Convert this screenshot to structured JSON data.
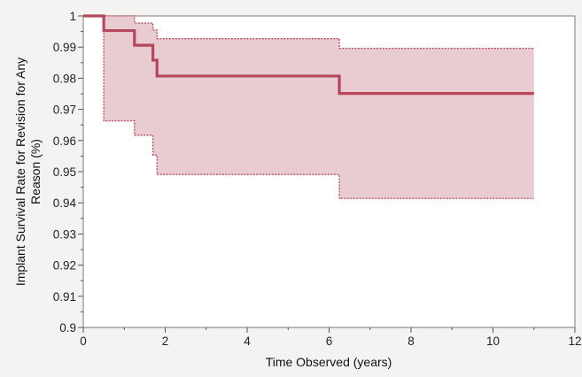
{
  "chart_data": {
    "type": "line",
    "title": "",
    "xlabel": "Time Observed (years)",
    "ylabel_lines": [
      "Implant Survival Rate for Revision for Any",
      "Reason (%)"
    ],
    "xlim": [
      0,
      12
    ],
    "ylim": [
      0.9,
      1
    ],
    "x_ticks": [
      0,
      2,
      4,
      6,
      8,
      10,
      12
    ],
    "x_tick_labels": [
      "0",
      "2",
      "4",
      "6",
      "8",
      "10",
      "12"
    ],
    "y_ticks": [
      0.9,
      0.91,
      0.92,
      0.93,
      0.94,
      0.95,
      0.96,
      0.97,
      0.98,
      0.99,
      1
    ],
    "y_tick_labels": [
      "0.9",
      "0.91",
      "0.92",
      "0.93",
      "0.94",
      "0.95",
      "0.96",
      "0.97",
      "0.98",
      "0.99",
      "1"
    ],
    "grid": false,
    "series": [
      {
        "role": "survival",
        "step": true,
        "color": "#b5475a",
        "x": [
          0,
          0.5,
          1.25,
          1.7,
          1.8,
          6.25,
          11
        ],
        "y": [
          1,
          0.9953,
          0.9906,
          0.9858,
          0.9807,
          0.9751,
          0.9751
        ]
      },
      {
        "role": "upper_bound",
        "step": true,
        "color": "#b5475a",
        "x": [
          0,
          0.5,
          1.25,
          1.7,
          1.8,
          6.25,
          11
        ],
        "y": [
          1,
          1,
          0.9977,
          0.9955,
          0.9927,
          0.9896,
          0.9896
        ]
      },
      {
        "role": "lower_bound",
        "step": true,
        "color": "#b5475a",
        "x": [
          0,
          0.5,
          1.25,
          1.7,
          1.8,
          6.25,
          11
        ],
        "y": [
          1,
          0.9663,
          0.9617,
          0.9553,
          0.9491,
          0.9414,
          0.9414
        ]
      }
    ],
    "band_color": "#e8ccd2"
  }
}
